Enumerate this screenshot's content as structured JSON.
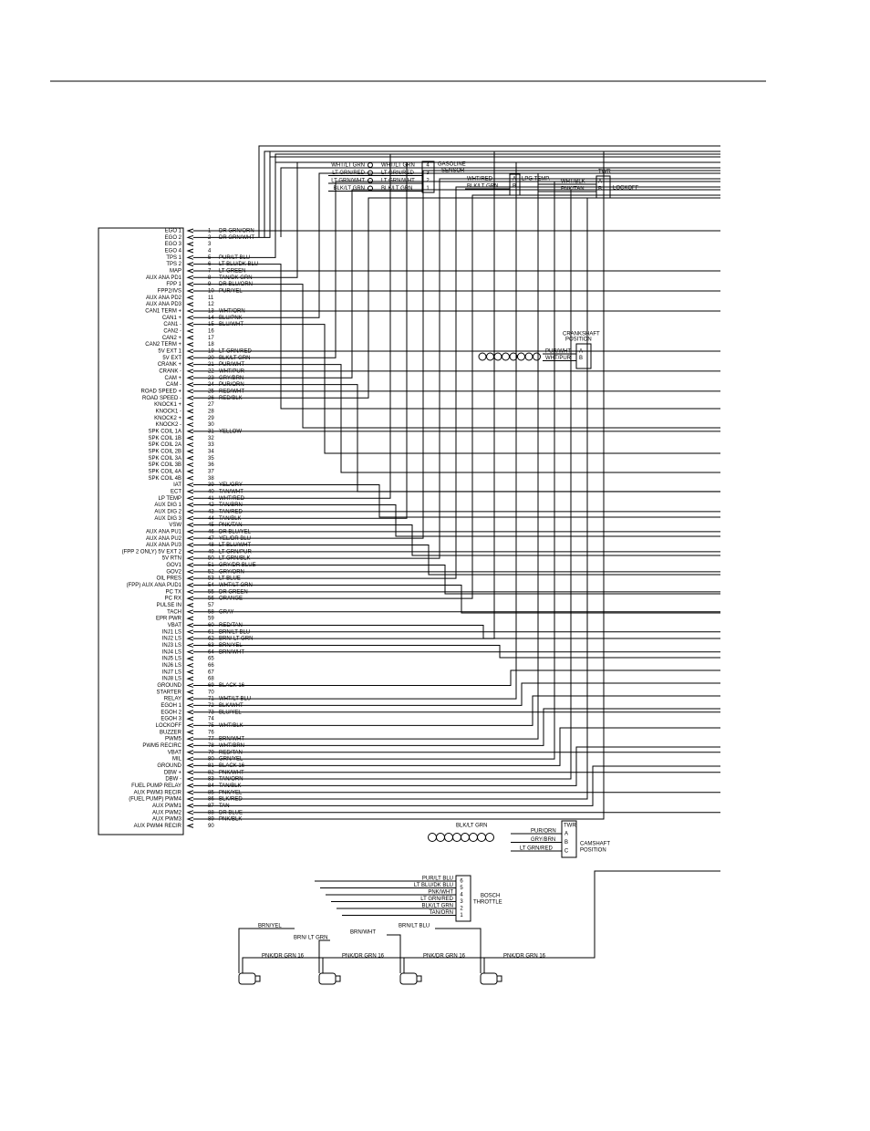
{
  "ecm": {
    "pins": [
      {
        "number": 1,
        "name": "EGO 1",
        "wire": "DR GRN/ORN"
      },
      {
        "number": 2,
        "name": "EGO 2",
        "wire": "DR GRN/WHT"
      },
      {
        "number": 3,
        "name": "EGO 3"
      },
      {
        "number": 4,
        "name": "EGO 4"
      },
      {
        "number": 5,
        "name": "TPS 1",
        "wire": "PUR/LT BLU"
      },
      {
        "number": 6,
        "name": "TPS 2",
        "wire": "LT BLU/DK BLU"
      },
      {
        "number": 7,
        "name": "MAP",
        "wire": "LT GREEN"
      },
      {
        "number": 8,
        "name": "AUX ANA PD1",
        "wire": "TAN/DK GRN"
      },
      {
        "number": 9,
        "name": "FPP 1",
        "wire": "DR BLU/ORN"
      },
      {
        "number": 10,
        "name": "FPP2/IVS",
        "wire": "PUR/YEL"
      },
      {
        "number": 11,
        "name": "AUX ANA PD2"
      },
      {
        "number": 12,
        "name": "AUX ANA PD3"
      },
      {
        "number": 13,
        "name": "CAN1 TERM +",
        "wire": "WHT/ORN"
      },
      {
        "number": 14,
        "name": "CAN1 +",
        "wire": "BLU/PNK"
      },
      {
        "number": 15,
        "name": "CAN1 -",
        "wire": "BLU/WHT"
      },
      {
        "number": 16,
        "name": "CAN2 -"
      },
      {
        "number": 17,
        "name": "CAN2 +"
      },
      {
        "number": 18,
        "name": "CAN2 TERM +"
      },
      {
        "number": 19,
        "name": "5V EXT 1",
        "wire": "LT GRN/RED"
      },
      {
        "number": 20,
        "name": "5V EXT",
        "wire": "BLK/LT GRN"
      },
      {
        "number": 21,
        "name": "CRANK +",
        "wire": "PUR/WHT"
      },
      {
        "number": 22,
        "name": "CRANK -",
        "wire": "WHT/PUR"
      },
      {
        "number": 23,
        "name": "CAM +",
        "wire": "GRY/BRN"
      },
      {
        "number": 24,
        "name": "CAM -",
        "wire": "PUR/ORN"
      },
      {
        "number": 25,
        "name": "ROAD SPEED +",
        "wire": "RED/WHT"
      },
      {
        "number": 26,
        "name": "ROAD SPEED -",
        "wire": "RED/BLK"
      },
      {
        "number": 27,
        "name": "KNOCK1 +"
      },
      {
        "number": 28,
        "name": "KNOCK1 -"
      },
      {
        "number": 29,
        "name": "KNOCK2 +"
      },
      {
        "number": 30,
        "name": "KNOCK2 -"
      },
      {
        "number": 31,
        "name": "SPK COIL 1A",
        "wire": "YELLOW"
      },
      {
        "number": 32,
        "name": "SPK COIL 1B"
      },
      {
        "number": 33,
        "name": "SPK COIL 2A"
      },
      {
        "number": 34,
        "name": "SPK COIL 2B"
      },
      {
        "number": 35,
        "name": "SPK COIL 3A"
      },
      {
        "number": 36,
        "name": "SPK COIL 3B"
      },
      {
        "number": 37,
        "name": "SPK COIL 4A"
      },
      {
        "number": 38,
        "name": "SPK COIL 4B"
      },
      {
        "number": 39,
        "name": "IAT",
        "wire": "YEL/GRY"
      },
      {
        "number": 40,
        "name": "ECT",
        "wire": "TAN/WHT"
      },
      {
        "number": 41,
        "name": "LP TEMP",
        "wire": "WHT/RED"
      },
      {
        "number": 42,
        "name": "AUX DIG 1",
        "wire": "TAN/BRN"
      },
      {
        "number": 43,
        "name": "AUX DIG 2",
        "wire": "TAN/RED"
      },
      {
        "number": 44,
        "name": "AUX DIG 3",
        "wire": "TAN/BLK"
      },
      {
        "number": 45,
        "name": "VSW",
        "wire": "PNK/TAN"
      },
      {
        "number": 46,
        "name": "AUX ANA PU1",
        "wire": "DR BLU/YEL"
      },
      {
        "number": 47,
        "name": "AUX ANA PU2",
        "wire": "YEL/DR BLU"
      },
      {
        "number": 48,
        "name": "AUX ANA PU3",
        "wire": "LT BLU/WHT"
      },
      {
        "number": 49,
        "name": "(FPP 2 ONLY) 5V EXT 2",
        "wire": "LT GRN/PUR"
      },
      {
        "number": 50,
        "name": "5V RTN",
        "wire": "LT GRN/BLK"
      },
      {
        "number": 51,
        "name": "GOV1",
        "wire": "GRY/DR BLUE"
      },
      {
        "number": 52,
        "name": "GOV2",
        "wire": "GRY/ORN"
      },
      {
        "number": 53,
        "name": "OIL PRES",
        "wire": "LT BLUE"
      },
      {
        "number": 54,
        "name": "(FPP) AUX ANA PUD1",
        "wire": "WHT/LT GRN"
      },
      {
        "number": 55,
        "name": "PC TX",
        "wire": "DR GREEN"
      },
      {
        "number": 56,
        "name": "PC RX",
        "wire": "ORANGE"
      },
      {
        "number": 57,
        "name": "PULSE IN"
      },
      {
        "number": 58,
        "name": "TACH",
        "wire": "GRAY"
      },
      {
        "number": 59,
        "name": "EPR PWR"
      },
      {
        "number": 60,
        "name": "VBAT",
        "wire": "RED/TAN"
      },
      {
        "number": 61,
        "name": "INJ1 LS",
        "wire": "BRN/LT BLU"
      },
      {
        "number": 62,
        "name": "INJ2 LS",
        "wire": "BRN/ LT GRN"
      },
      {
        "number": 63,
        "name": "INJ3 LS",
        "wire": "BRN/YEL"
      },
      {
        "number": 64,
        "name": "INJ4 LS",
        "wire": "BRN/WHT"
      },
      {
        "number": 65,
        "name": "INJ5 LS"
      },
      {
        "number": 66,
        "name": "INJ6 LS"
      },
      {
        "number": 67,
        "name": "INJ7 LS"
      },
      {
        "number": 68,
        "name": "INJ8 LS"
      },
      {
        "number": 69,
        "name": "GROUND",
        "wire": "BLACK 16"
      },
      {
        "number": 70,
        "name": "STARTER"
      },
      {
        "number": 71,
        "name": "RELAY",
        "wire": "WHT/LT BLU"
      },
      {
        "number": 72,
        "name": "EGOH 1",
        "wire": "BLK/WHT"
      },
      {
        "number": 73,
        "name": "EGOH 2",
        "wire": "BLU/YEL"
      },
      {
        "number": 74,
        "name": "EGOH 3"
      },
      {
        "number": 75,
        "name": "LOCKOFF",
        "wire": "WHT/BLK"
      },
      {
        "number": 76,
        "name": "BUZZER"
      },
      {
        "number": 77,
        "name": "PWM5",
        "wire": "BRN/WHT"
      },
      {
        "number": 78,
        "name": "PWM5 RECIRC",
        "wire": "WHT/BRN"
      },
      {
        "number": 79,
        "name": "VBAT",
        "wire": "RED/TAN"
      },
      {
        "number": 80,
        "name": "MIL",
        "wire": "GRN/YEL"
      },
      {
        "number": 81,
        "name": "GROUND",
        "wire": "BLACK 16"
      },
      {
        "number": 82,
        "name": "DBW +",
        "wire": "PNK/WHT"
      },
      {
        "number": 83,
        "name": "DBW -",
        "wire": "TAN/ORN"
      },
      {
        "number": 84,
        "name": "FUEL PUMP RELAY",
        "wire": "TAN/BLK"
      },
      {
        "number": 85,
        "name": "AUX PWM3 RECIR",
        "wire": "PNK/YEL"
      },
      {
        "number": 86,
        "name": "(FUEL PUMP) PWM4",
        "wire": "BLK/RED"
      },
      {
        "number": 87,
        "name": "AUX PWM1",
        "wire": "TAN"
      },
      {
        "number": 88,
        "name": "AUX PWM2",
        "wire": "DR BLUE"
      },
      {
        "number": 89,
        "name": "AUX PWM3",
        "wire": "PNK/BLK"
      },
      {
        "number": 90,
        "name": "AUX PWM4 RECIR"
      }
    ]
  },
  "gasoline_sensor": {
    "title": [
      "GASOLINE",
      "SENSOR"
    ],
    "left_wires": [
      "WHT/LT GRN",
      "LT GRN/RED",
      "LT GRN/WHT",
      "BLK/LT GRN"
    ],
    "right_wires": [
      "WHT/LT GRN",
      "LT GRN/RED",
      "LT GRN/WHT",
      "BLK/LT GRN"
    ],
    "pins": [
      "4",
      "3",
      "2",
      "1"
    ]
  },
  "lpg_temp": {
    "title": "LPG TEMP.",
    "wires": [
      "WHT/RED",
      "BLK/LT GRN"
    ],
    "pins": [
      "A",
      "B"
    ]
  },
  "lockoff": {
    "tag": "TWR",
    "title": "LOCKOFF",
    "wires": [
      "WHT/BLK",
      "PNK/TAN"
    ],
    "pins": [
      "A",
      "B"
    ]
  },
  "crankshaft": {
    "title": [
      "CRANKSHAFT",
      "POSITION"
    ],
    "wires": [
      "PUR/WHT",
      "WHT/PUR"
    ],
    "pins": [
      "A",
      "B"
    ]
  },
  "camshaft": {
    "tag": "TWR",
    "title": [
      "CAMSHAFT",
      "POSITION"
    ],
    "shield_wire": "BLK/LT GRN",
    "wires": [
      "PUR/ORN",
      "GRY/BRN",
      "LT GRN/RED"
    ],
    "pins": [
      "A",
      "B",
      "C"
    ]
  },
  "bosch_throttle": {
    "title": [
      "BOSCH",
      "THROTTLE"
    ],
    "wires": [
      "PUR/LT BLU",
      "LT BLU/DK BLU",
      "PNK/WHT",
      "LT GRN/RED",
      "BLK/LT GRN",
      "TAN/ORN"
    ],
    "pins": [
      "6",
      "5",
      "4",
      "3",
      "2",
      "1"
    ]
  },
  "injectors": {
    "signal_wires": [
      "BRN/YEL",
      "BRN/ LT GRN",
      "BRN/WHT",
      "BRN/LT BLU"
    ],
    "power_wires": [
      "PNK/DR GRN 16",
      "PNK/DR GRN 16",
      "PNK/DR GRN 16",
      "PNK/DR GRN 16"
    ]
  }
}
